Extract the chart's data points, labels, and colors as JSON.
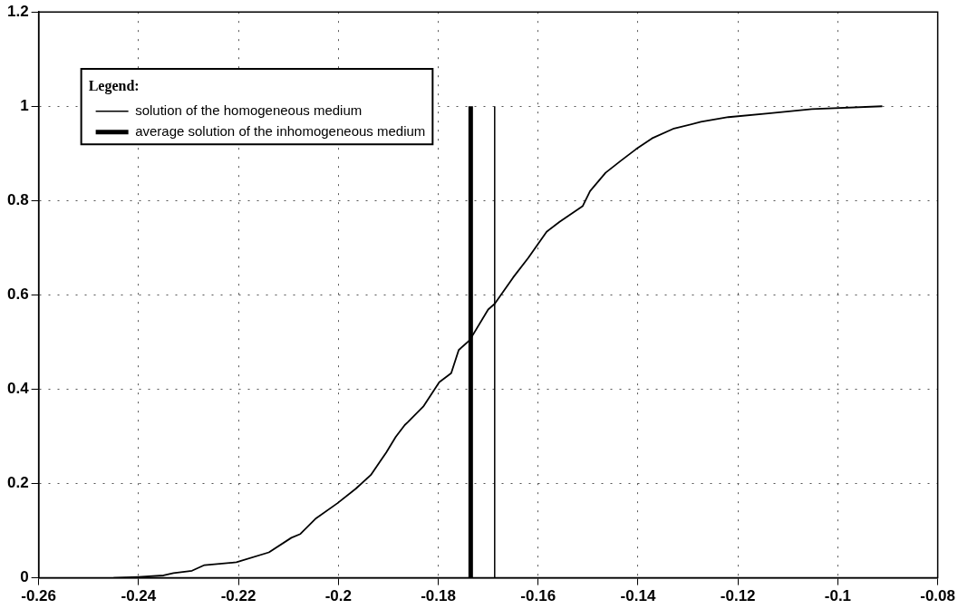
{
  "chart_data": {
    "type": "line",
    "legend_title": "Legend:",
    "legend": "top left",
    "grid": true,
    "marker": "none",
    "line_style": "solid",
    "xlim": [
      -0.26,
      -0.08
    ],
    "xticks": [
      -0.26,
      -0.24,
      -0.22,
      -0.2,
      -0.18,
      -0.16,
      -0.14,
      -0.12,
      -0.1,
      -0.08
    ],
    "ylim": [
      0,
      1.2
    ],
    "yticks": [
      0,
      0.2,
      0.4,
      0.6,
      0.8,
      1,
      1.2
    ],
    "series": [
      {
        "color": "#000000",
        "x": [
          -0.245,
          -0.24,
          -0.235,
          -0.233,
          -0.2293,
          -0.2268,
          -0.2204,
          -0.2139,
          -0.2094,
          -0.2076,
          -0.2046,
          -0.2002,
          -0.1965,
          -0.1935,
          -0.1904,
          -0.1885,
          -0.1867,
          -0.1861,
          -0.183,
          -0.1798,
          -0.1774,
          -0.1759,
          -0.1737,
          -0.17,
          -0.1687,
          -0.165,
          -0.162,
          -0.1583,
          -0.1557,
          -0.1511,
          -0.1496,
          -0.1465,
          -0.1435,
          -0.1404,
          -0.1372,
          -0.133,
          -0.1274,
          -0.1219,
          -0.1139,
          -0.1052,
          -0.0911
        ],
        "values": [
          0,
          0.002,
          0.005,
          0.01,
          0.015,
          0.027,
          0.033,
          0.054,
          0.085,
          0.093,
          0.125,
          0.158,
          0.189,
          0.218,
          0.266,
          0.299,
          0.324,
          0.33,
          0.363,
          0.415,
          0.434,
          0.483,
          0.504,
          0.569,
          0.581,
          0.637,
          0.678,
          0.734,
          0.755,
          0.788,
          0.82,
          0.859,
          0.884,
          0.909,
          0.932,
          0.952,
          0.967,
          0.977,
          0.985,
          0.994,
          1
        ]
      },
      {
        "name": "solution of the homogeneous medium",
        "color": "#000000",
        "x": [
          -0.1687,
          -0.1687
        ],
        "values": [
          0,
          1
        ]
      },
      {
        "name": "average solution of the inhomogeneous medium",
        "color": "#000000",
        "x": [
          -0.1735,
          -0.1735
        ],
        "values": [
          0,
          1
        ]
      }
    ]
  }
}
